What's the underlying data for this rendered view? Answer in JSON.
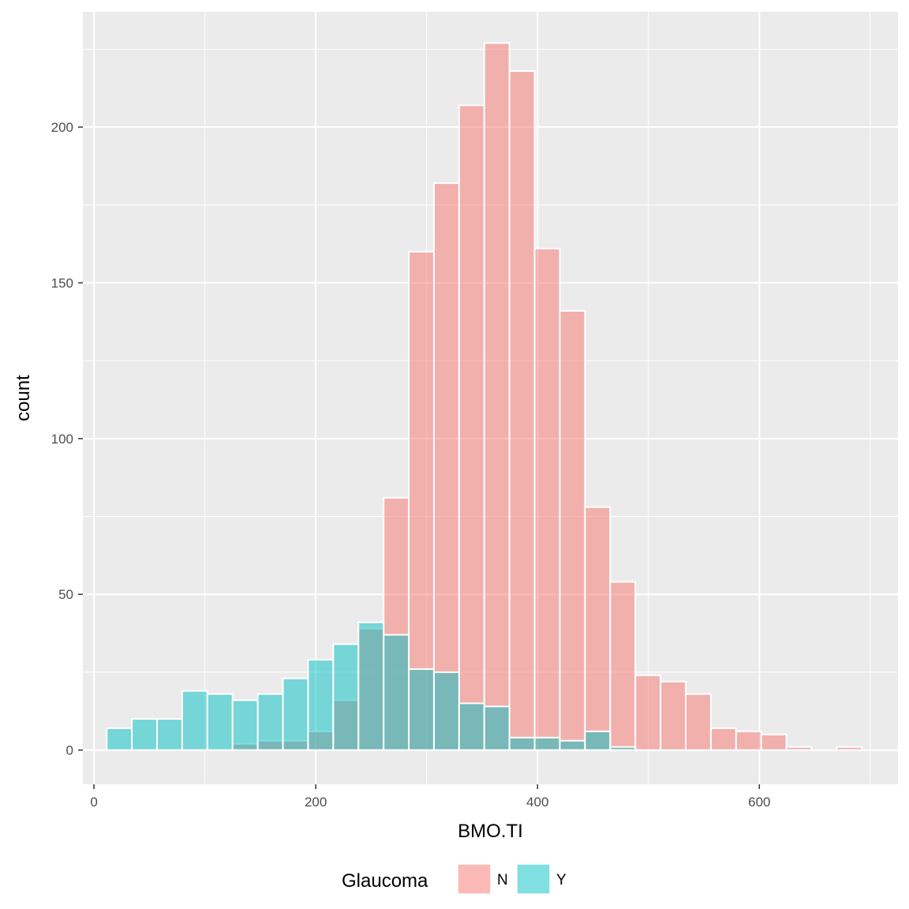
{
  "chart_data": {
    "type": "histogram",
    "x_label": "BMO.TI",
    "y_label": "count",
    "xlim": [
      -10,
      725
    ],
    "ylim": [
      -11,
      237
    ],
    "x_ticks": [
      0,
      200,
      400,
      600
    ],
    "y_ticks": [
      0,
      50,
      100,
      150,
      200
    ],
    "grid": true,
    "legend_position": "bottom",
    "legend_title": "Glaucoma",
    "bins": [
      {
        "lo": 11.5,
        "hi": 34.2
      },
      {
        "lo": 34.2,
        "hi": 56.9
      },
      {
        "lo": 56.9,
        "hi": 79.6
      },
      {
        "lo": 79.6,
        "hi": 102.3
      },
      {
        "lo": 102.3,
        "hi": 125.0
      },
      {
        "lo": 125.0,
        "hi": 147.7
      },
      {
        "lo": 147.7,
        "hi": 170.4
      },
      {
        "lo": 170.4,
        "hi": 193.1
      },
      {
        "lo": 193.1,
        "hi": 215.8
      },
      {
        "lo": 215.8,
        "hi": 238.5
      },
      {
        "lo": 238.5,
        "hi": 261.2
      },
      {
        "lo": 261.2,
        "hi": 283.9
      },
      {
        "lo": 283.9,
        "hi": 306.6
      },
      {
        "lo": 306.6,
        "hi": 329.3
      },
      {
        "lo": 329.3,
        "hi": 352.0
      },
      {
        "lo": 352.0,
        "hi": 374.7
      },
      {
        "lo": 374.7,
        "hi": 397.4
      },
      {
        "lo": 397.4,
        "hi": 420.1
      },
      {
        "lo": 420.1,
        "hi": 442.8
      },
      {
        "lo": 442.8,
        "hi": 465.5
      },
      {
        "lo": 465.5,
        "hi": 488.2
      },
      {
        "lo": 488.2,
        "hi": 510.9
      },
      {
        "lo": 510.9,
        "hi": 533.6
      },
      {
        "lo": 533.6,
        "hi": 556.3
      },
      {
        "lo": 556.3,
        "hi": 579.0
      },
      {
        "lo": 579.0,
        "hi": 601.7
      },
      {
        "lo": 601.7,
        "hi": 624.4
      },
      {
        "lo": 624.4,
        "hi": 647.1
      },
      {
        "lo": 647.1,
        "hi": 669.8
      },
      {
        "lo": 669.8,
        "hi": 692.5
      }
    ],
    "series": [
      {
        "name": "N",
        "color": "#F8766D",
        "values": [
          0,
          0,
          0,
          0,
          0,
          2,
          3,
          3,
          6,
          16,
          39,
          81,
          160,
          182,
          207,
          227,
          218,
          161,
          141,
          78,
          54,
          24,
          22,
          18,
          7,
          6,
          5,
          1,
          0,
          1
        ]
      },
      {
        "name": "Y",
        "color": "#00BFC4",
        "values": [
          7,
          10,
          10,
          19,
          18,
          16,
          18,
          23,
          29,
          34,
          41,
          37,
          26,
          25,
          15,
          14,
          4,
          4,
          3,
          6,
          1,
          0,
          0,
          0,
          0,
          0,
          0,
          0,
          0,
          0
        ]
      }
    ]
  }
}
